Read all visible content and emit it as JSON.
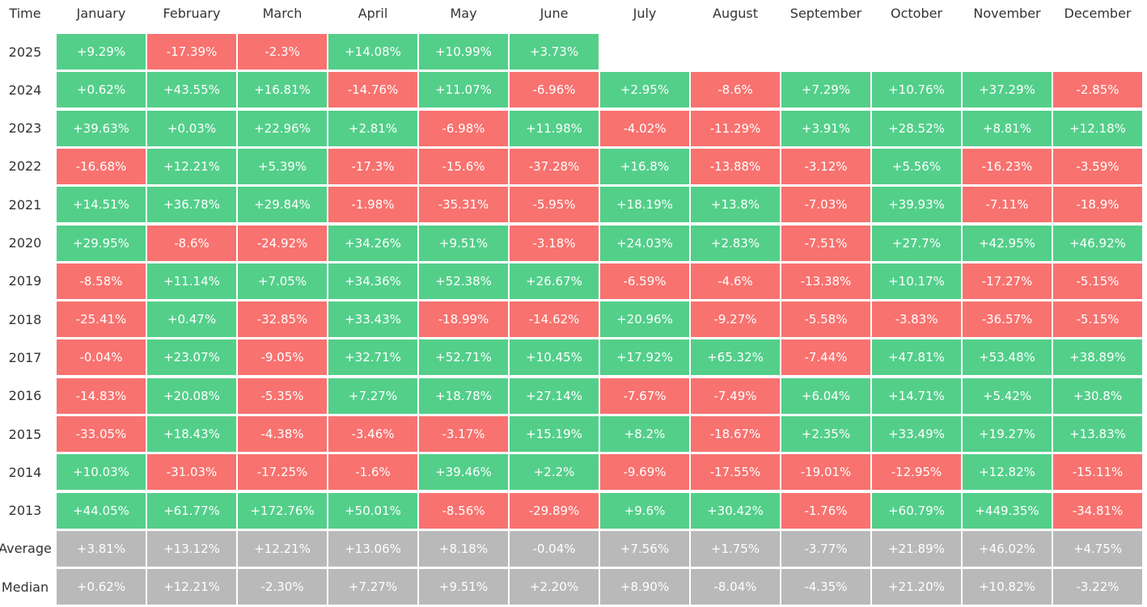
{
  "chart_data": {
    "type": "table",
    "corner_label": "Time",
    "columns": [
      "January",
      "February",
      "March",
      "April",
      "May",
      "June",
      "July",
      "August",
      "September",
      "October",
      "November",
      "December"
    ],
    "colors": {
      "positive": "#53cf8a",
      "negative": "#f8726f",
      "summary": "#b9b9b9"
    },
    "rows": [
      {
        "label": "2025",
        "type": "year",
        "values": [
          "+9.29%",
          "-17.39%",
          "-2.3%",
          "+14.08%",
          "+10.99%",
          "+3.73%",
          null,
          null,
          null,
          null,
          null,
          null
        ]
      },
      {
        "label": "2024",
        "type": "year",
        "values": [
          "+0.62%",
          "+43.55%",
          "+16.81%",
          "-14.76%",
          "+11.07%",
          "-6.96%",
          "+2.95%",
          "-8.6%",
          "+7.29%",
          "+10.76%",
          "+37.29%",
          "-2.85%"
        ]
      },
      {
        "label": "2023",
        "type": "year",
        "values": [
          "+39.63%",
          "+0.03%",
          "+22.96%",
          "+2.81%",
          "-6.98%",
          "+11.98%",
          "-4.02%",
          "-11.29%",
          "+3.91%",
          "+28.52%",
          "+8.81%",
          "+12.18%"
        ]
      },
      {
        "label": "2022",
        "type": "year",
        "values": [
          "-16.68%",
          "+12.21%",
          "+5.39%",
          "-17.3%",
          "-15.6%",
          "-37.28%",
          "+16.8%",
          "-13.88%",
          "-3.12%",
          "+5.56%",
          "-16.23%",
          "-3.59%"
        ]
      },
      {
        "label": "2021",
        "type": "year",
        "values": [
          "+14.51%",
          "+36.78%",
          "+29.84%",
          "-1.98%",
          "-35.31%",
          "-5.95%",
          "+18.19%",
          "+13.8%",
          "-7.03%",
          "+39.93%",
          "-7.11%",
          "-18.9%"
        ]
      },
      {
        "label": "2020",
        "type": "year",
        "values": [
          "+29.95%",
          "-8.6%",
          "-24.92%",
          "+34.26%",
          "+9.51%",
          "-3.18%",
          "+24.03%",
          "+2.83%",
          "-7.51%",
          "+27.7%",
          "+42.95%",
          "+46.92%"
        ]
      },
      {
        "label": "2019",
        "type": "year",
        "values": [
          "-8.58%",
          "+11.14%",
          "+7.05%",
          "+34.36%",
          "+52.38%",
          "+26.67%",
          "-6.59%",
          "-4.6%",
          "-13.38%",
          "+10.17%",
          "-17.27%",
          "-5.15%"
        ]
      },
      {
        "label": "2018",
        "type": "year",
        "values": [
          "-25.41%",
          "+0.47%",
          "-32.85%",
          "+33.43%",
          "-18.99%",
          "-14.62%",
          "+20.96%",
          "-9.27%",
          "-5.58%",
          "-3.83%",
          "-36.57%",
          "-5.15%"
        ]
      },
      {
        "label": "2017",
        "type": "year",
        "values": [
          "-0.04%",
          "+23.07%",
          "-9.05%",
          "+32.71%",
          "+52.71%",
          "+10.45%",
          "+17.92%",
          "+65.32%",
          "-7.44%",
          "+47.81%",
          "+53.48%",
          "+38.89%"
        ]
      },
      {
        "label": "2016",
        "type": "year",
        "values": [
          "-14.83%",
          "+20.08%",
          "-5.35%",
          "+7.27%",
          "+18.78%",
          "+27.14%",
          "-7.67%",
          "-7.49%",
          "+6.04%",
          "+14.71%",
          "+5.42%",
          "+30.8%"
        ]
      },
      {
        "label": "2015",
        "type": "year",
        "values": [
          "-33.05%",
          "+18.43%",
          "-4.38%",
          "-3.46%",
          "-3.17%",
          "+15.19%",
          "+8.2%",
          "-18.67%",
          "+2.35%",
          "+33.49%",
          "+19.27%",
          "+13.83%"
        ]
      },
      {
        "label": "2014",
        "type": "year",
        "values": [
          "+10.03%",
          "-31.03%",
          "-17.25%",
          "-1.6%",
          "+39.46%",
          "+2.2%",
          "-9.69%",
          "-17.55%",
          "-19.01%",
          "-12.95%",
          "+12.82%",
          "-15.11%"
        ]
      },
      {
        "label": "2013",
        "type": "year",
        "values": [
          "+44.05%",
          "+61.77%",
          "+172.76%",
          "+50.01%",
          "-8.56%",
          "-29.89%",
          "+9.6%",
          "+30.42%",
          "-1.76%",
          "+60.79%",
          "+449.35%",
          "-34.81%"
        ]
      },
      {
        "label": "Average",
        "type": "summary",
        "values": [
          "+3.81%",
          "+13.12%",
          "+12.21%",
          "+13.06%",
          "+8.18%",
          "-0.04%",
          "+7.56%",
          "+1.75%",
          "-3.77%",
          "+21.89%",
          "+46.02%",
          "+4.75%"
        ]
      },
      {
        "label": "Median",
        "type": "summary",
        "values": [
          "+0.62%",
          "+12.21%",
          "-2.30%",
          "+7.27%",
          "+9.51%",
          "+2.20%",
          "+8.90%",
          "-8.04%",
          "-4.35%",
          "+21.20%",
          "+10.82%",
          "-3.22%"
        ]
      }
    ]
  }
}
